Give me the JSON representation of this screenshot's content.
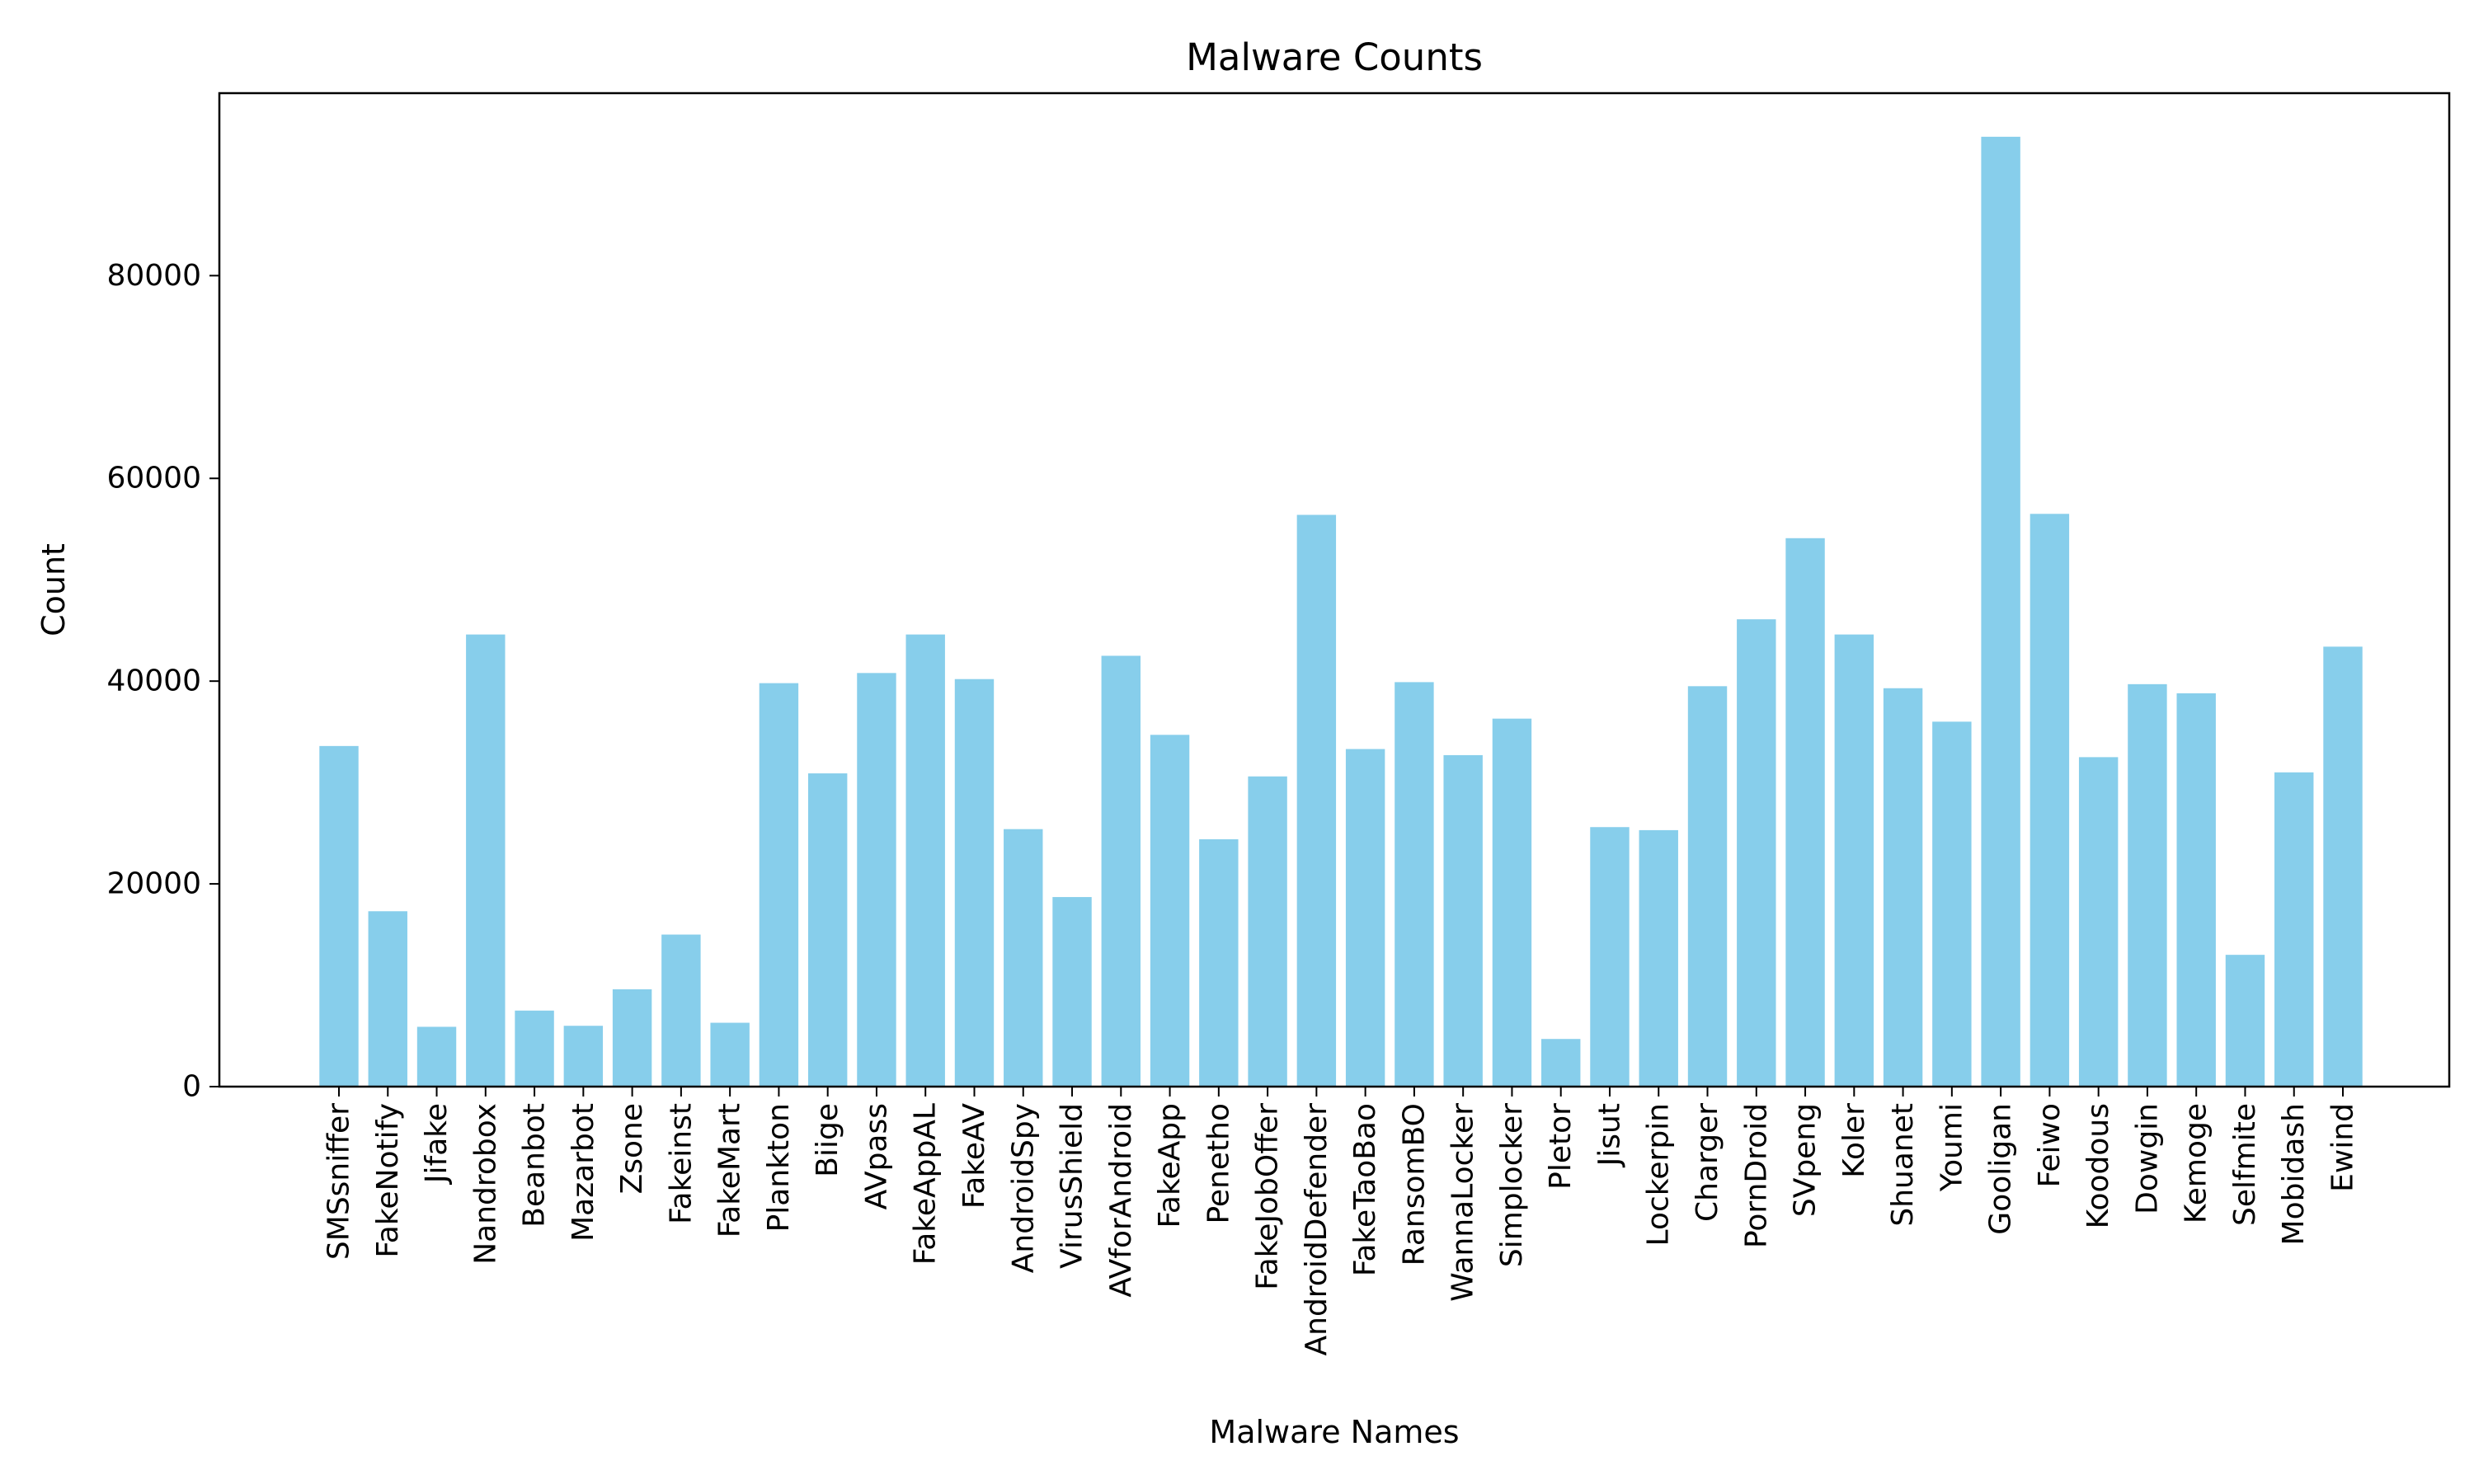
{
  "chart_data": {
    "type": "bar",
    "title": "Malware Counts",
    "xlabel": "Malware Names",
    "ylabel": "Count",
    "ylim": [
      0,
      98000
    ],
    "yticks": [
      0,
      20000,
      40000,
      60000,
      80000
    ],
    "grid": false,
    "bar_color": "#87CEEB",
    "categories": [
      "SMSsniffer",
      "FakeNotify",
      "Jifake",
      "Nandrobox",
      "Beanbot",
      "Mazarbot",
      "Zsone",
      "Fakeinst",
      "FakeMart",
      "Plankton",
      "Biige",
      "AVpass",
      "FakeAppAL",
      "FakeAV",
      "AndroidSpy",
      "VirusShield",
      "AVforAndroid",
      "FakeApp",
      "Penetho",
      "FakeJobOffer",
      "AndroidDefender",
      "FakeTaoBao",
      "RansomBO",
      "WannaLocker",
      "Simplocker",
      "Pletor",
      "Jisut",
      "Lockerpin",
      "Charger",
      "PornDroid",
      "SVpeng",
      "Koler",
      "Shuanet",
      "Youmi",
      "Gooligan",
      "Feiwo",
      "Koodous",
      "Dowgin",
      "Kemoge",
      "Selfmite",
      "Mobidash",
      "Ewind"
    ],
    "values": [
      33600,
      17300,
      5900,
      44600,
      7500,
      6000,
      9600,
      15000,
      6300,
      39800,
      30900,
      40800,
      44600,
      40200,
      25400,
      18700,
      42500,
      34700,
      24400,
      30600,
      56400,
      33300,
      39900,
      32700,
      36300,
      4700,
      25600,
      25300,
      39500,
      46100,
      54100,
      44600,
      39300,
      36000,
      93700,
      56500,
      32500,
      39700,
      38800,
      13000,
      31000,
      43400
    ]
  }
}
